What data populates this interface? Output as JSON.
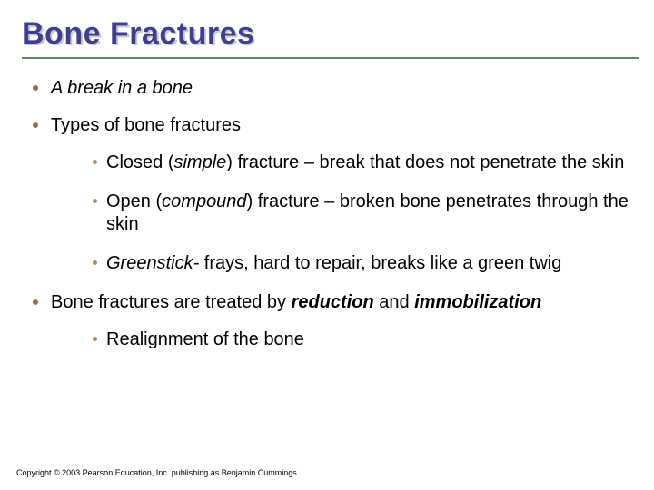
{
  "title": "Bone Fractures",
  "l1_1": "A break in a bone",
  "l1_2": "Types of bone fractures",
  "l2_1_a": "Closed (",
  "l2_1_b": "simple",
  "l2_1_c": ") fracture – break that does not penetrate the skin",
  "l2_2_a": "Open (",
  "l2_2_b": "compound",
  "l2_2_c": ") fracture – broken bone penetrates through the skin",
  "l2_3_a": "Greenstick-",
  "l2_3_b": " frays, hard to repair, breaks like a green twig",
  "l1_3_a": "Bone fractures are treated  by ",
  "l1_3_b": "reduction",
  "l1_3_c": " and ",
  "l1_3_d": "immobilization",
  "l2_4": "Realignment of the bone",
  "copyright": "Copyright © 2003 Pearson Education, Inc. publishing as Benjamin Cummings",
  "colors": {
    "title": "#3f3f8f",
    "title_shadow": "#c8c8d8",
    "divider": "#5a8a5a",
    "bullet_l1": "#9a6a4a",
    "bullet_l2": "#b08860",
    "background": "#ffffff",
    "text": "#000000"
  },
  "fonts": {
    "title_size": 34,
    "body_size": 20,
    "copyright_size": 9
  }
}
